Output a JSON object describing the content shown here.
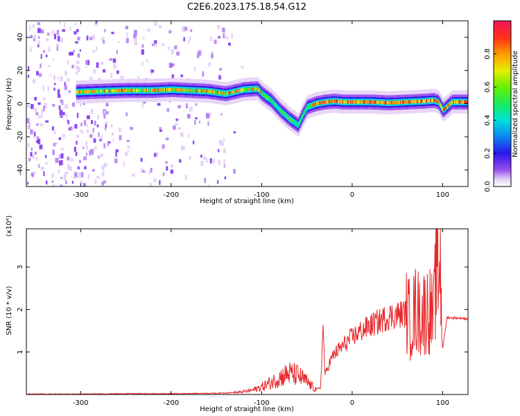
{
  "title": "C2E6.2023.175.18.54.G12",
  "chart_data": [
    {
      "type": "heatmap",
      "xlabel": "Height of straight line (km)",
      "ylabel": "Frequency (Hz)",
      "xlim": [
        -360,
        128
      ],
      "ylim": [
        -50,
        50
      ],
      "xticks": [
        -300,
        -200,
        -100,
        0,
        100
      ],
      "yticks": [
        -40,
        -20,
        0,
        20,
        40
      ],
      "colorbar": {
        "label": "Normalized spectral amplitude",
        "range": [
          0,
          1
        ],
        "ticks": [
          0.0,
          0.2,
          0.4,
          0.6,
          0.8
        ],
        "colormap": "rainbow-white"
      },
      "ridge": {
        "x": [
          -305,
          -280,
          -250,
          -220,
          -200,
          -180,
          -160,
          -140,
          -120,
          -105,
          -100,
          -90,
          -80,
          -70,
          -60,
          -55,
          -50,
          -45,
          -40,
          -30,
          -20,
          -10,
          0,
          20,
          40,
          60,
          80,
          90,
          95,
          100,
          110,
          128
        ],
        "frequency": [
          7,
          7.5,
          8,
          8,
          8.5,
          8,
          7.5,
          6,
          8.5,
          9,
          6,
          2,
          -4,
          -9,
          -13,
          -7,
          -2,
          -1,
          0,
          1,
          1.5,
          1,
          1,
          1,
          0.5,
          1,
          1.5,
          2,
          1,
          -4,
          1,
          1
        ]
      },
      "background_noise": "scattered low-amplitude purple speckle, dense for x < -270, patchy between -270 and -140, sparse beyond"
    },
    {
      "type": "line",
      "xlabel": "Height of straight line (km)",
      "ylabel": "SNR (10 * v/v)",
      "y_multiplier": "(x10⁴)",
      "xlim": [
        -360,
        128
      ],
      "ylim": [
        0,
        3.9
      ],
      "xticks": [
        -300,
        -200,
        -100,
        0,
        100
      ],
      "yticks": [
        1,
        2,
        3
      ],
      "color": "#e8272a",
      "x": [
        -360,
        -300,
        -250,
        -200,
        -150,
        -125,
        -110,
        -100,
        -90,
        -80,
        -70,
        -60,
        -50,
        -45,
        -40,
        -35,
        -32,
        -30,
        -25,
        -20,
        -10,
        0,
        10,
        20,
        30,
        40,
        50,
        60,
        65,
        70,
        75,
        80,
        85,
        90,
        93,
        95,
        97,
        100,
        105,
        110,
        120,
        128
      ],
      "y": [
        0.01,
        0.01,
        0.02,
        0.02,
        0.03,
        0.05,
        0.1,
        0.18,
        0.28,
        0.4,
        0.5,
        0.45,
        0.3,
        0.2,
        0.12,
        0.15,
        1.6,
        0.45,
        0.75,
        0.95,
        1.15,
        1.35,
        1.5,
        1.62,
        1.72,
        1.83,
        1.88,
        1.92,
        1.7,
        2.0,
        1.9,
        1.95,
        2.05,
        1.75,
        3.1,
        2.8,
        3.35,
        1.1,
        1.82,
        1.8,
        1.8,
        1.78
      ]
    }
  ]
}
